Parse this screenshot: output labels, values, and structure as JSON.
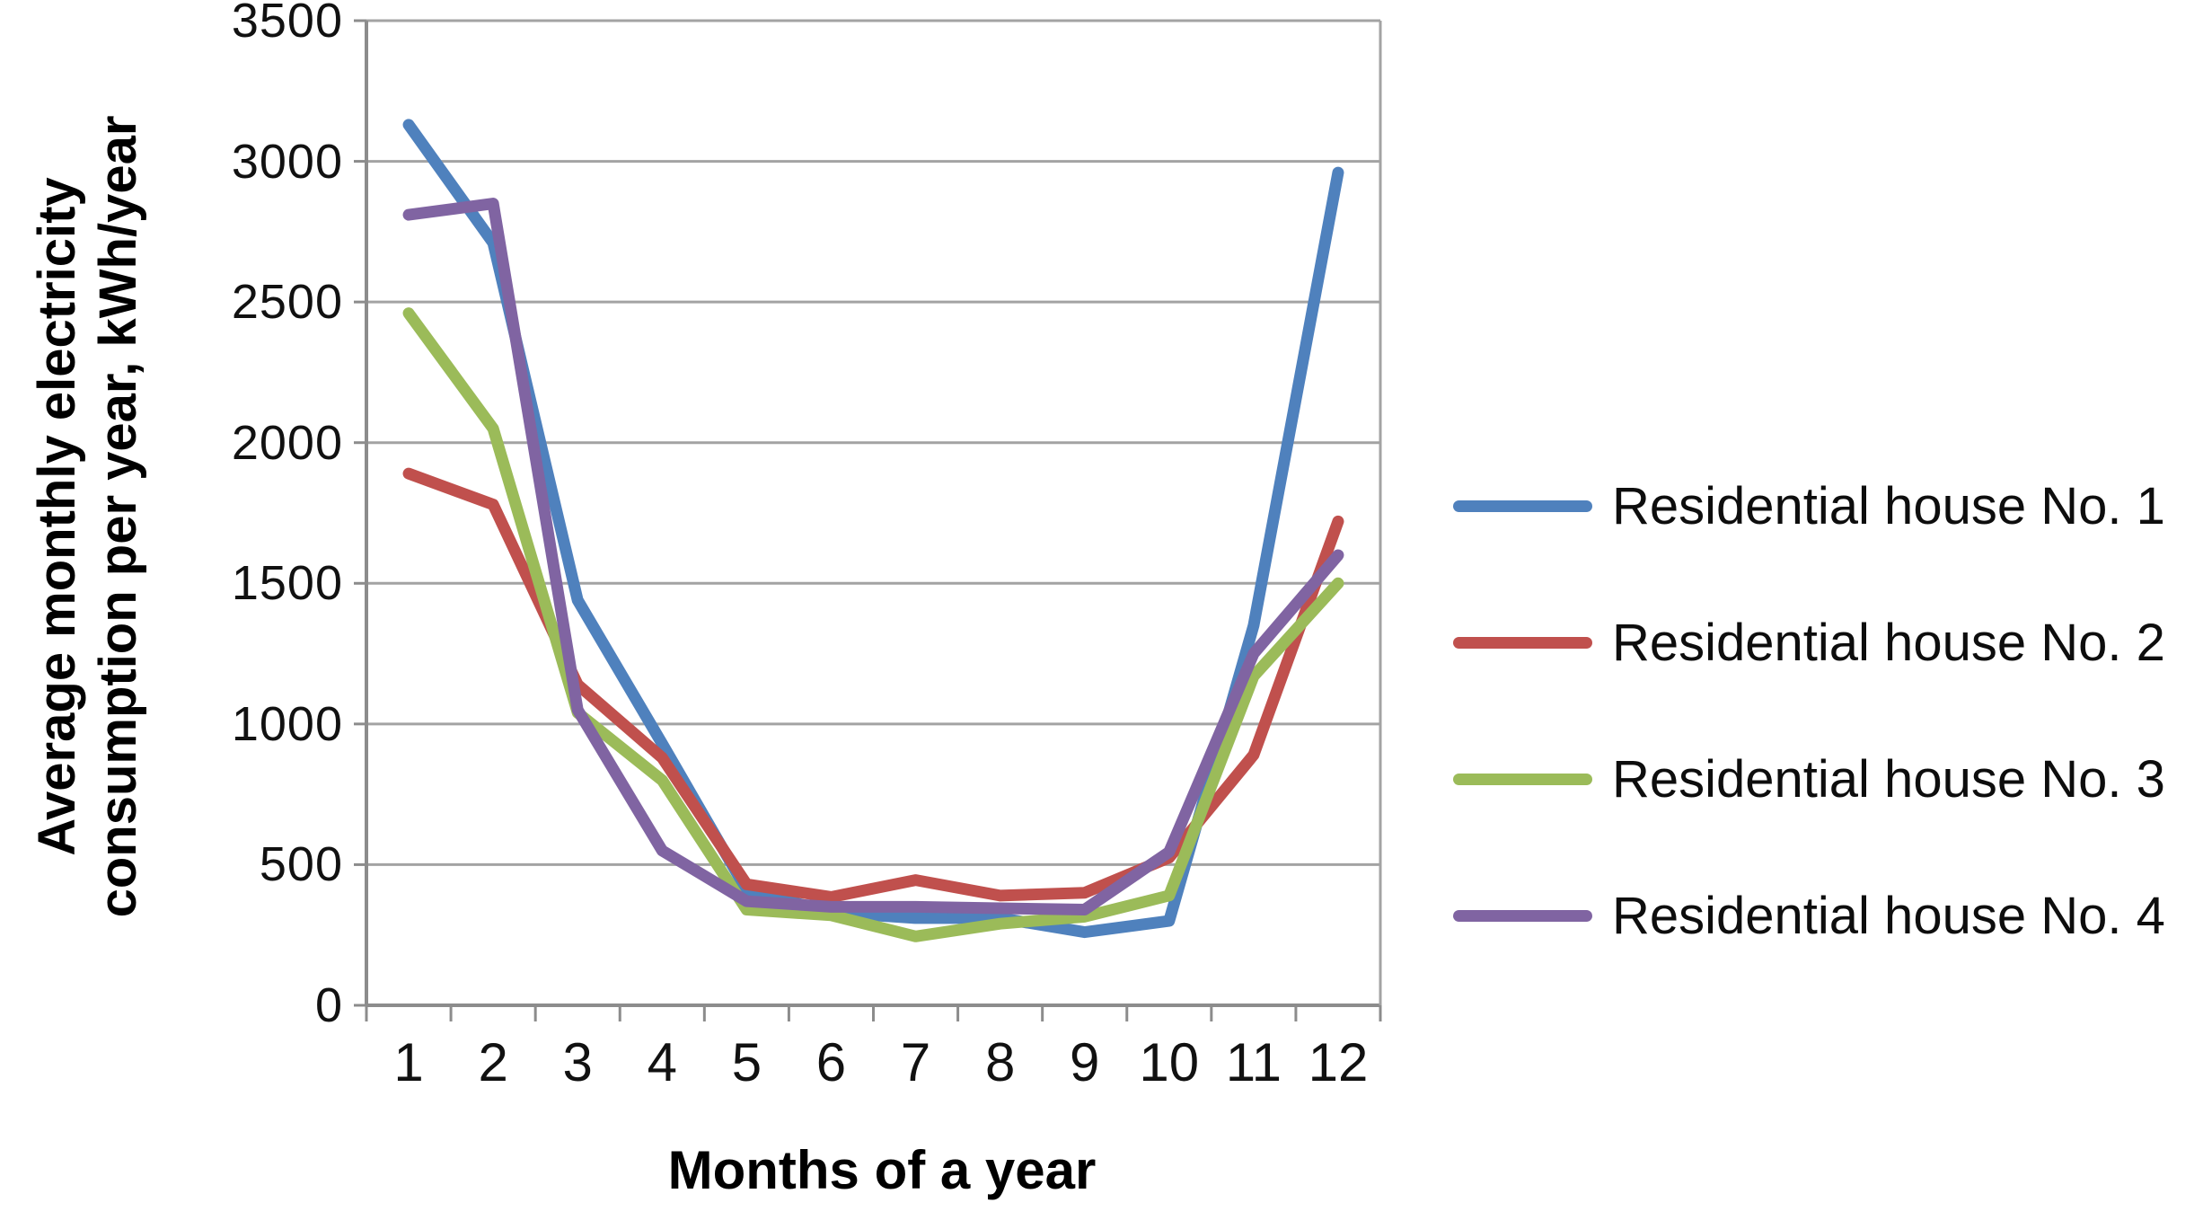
{
  "chart_data": {
    "type": "line",
    "title": "",
    "xlabel": "Months of a year",
    "ylabel": "Average monthly electricity consumption per year, kWh/year",
    "ylabel_line1": "Average monthly electricity",
    "ylabel_line2": "consumption per year, kWh/year",
    "categories": [
      1,
      2,
      3,
      4,
      5,
      6,
      7,
      8,
      9,
      10,
      11,
      12
    ],
    "ylim": [
      0,
      3500
    ],
    "ytick_step": 500,
    "yticks": [
      0,
      500,
      1000,
      1500,
      2000,
      2500,
      3000,
      3500
    ],
    "grid": true,
    "legend_position": "right",
    "series": [
      {
        "name": "Residential house No. 1",
        "color": "#4F81BD",
        "values": [
          3130,
          2710,
          1440,
          930,
          410,
          330,
          310,
          310,
          260,
          300,
          1350,
          2960
        ]
      },
      {
        "name": "Residential house No. 2",
        "color": "#C0504D",
        "values": [
          1890,
          1780,
          1140,
          880,
          430,
          385,
          445,
          390,
          400,
          525,
          890,
          1720
        ]
      },
      {
        "name": "Residential house No. 3",
        "color": "#9BBB59",
        "values": [
          2460,
          2050,
          1040,
          800,
          340,
          320,
          245,
          290,
          315,
          390,
          1170,
          1500
        ]
      },
      {
        "name": "Residential house No. 4",
        "color": "#8064A2",
        "values": [
          2810,
          2850,
          1050,
          550,
          370,
          350,
          350,
          345,
          340,
          545,
          1250,
          1600
        ]
      }
    ]
  },
  "colors": {
    "gridline": "#A3A3A3",
    "axis_line": "#8C8C8C",
    "tick_text": "#111111"
  }
}
